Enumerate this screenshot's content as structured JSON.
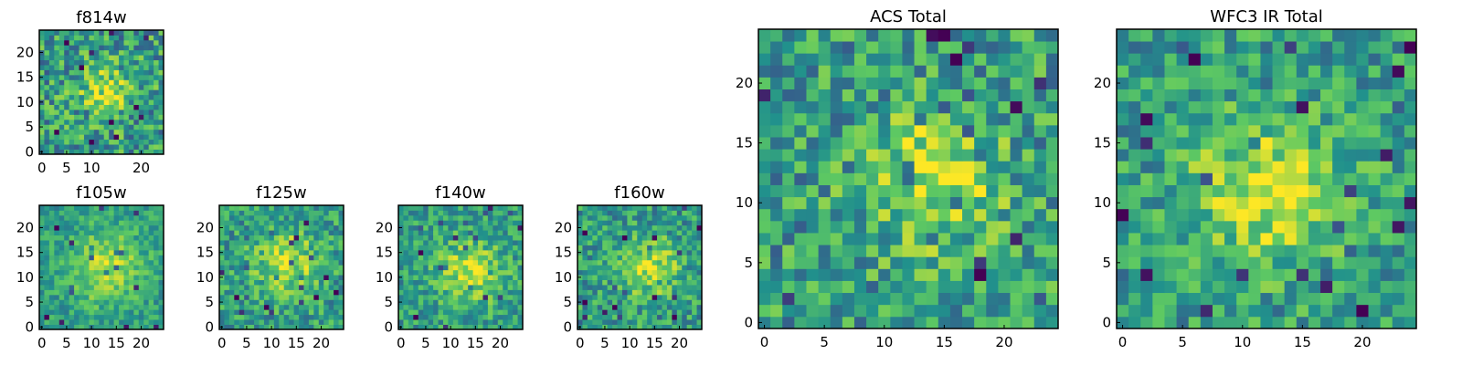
{
  "chart_data": [
    {
      "type": "heatmap",
      "id": "f814w",
      "title": "f814w",
      "size": 25,
      "xticks": [
        0,
        5,
        10,
        20
      ],
      "yticks": [
        0,
        5,
        10,
        15,
        20
      ],
      "xlim": [
        -0.5,
        24.5
      ],
      "ylim": [
        -0.5,
        24.5
      ],
      "peak": [
        13,
        12
      ],
      "spread": 3.5,
      "seed": 11,
      "noise": 0.28
    },
    {
      "type": "heatmap",
      "id": "f105w",
      "title": "f105w",
      "size": 25,
      "xticks": [
        0,
        5,
        10,
        15,
        20
      ],
      "yticks": [
        0,
        5,
        10,
        15,
        20
      ],
      "xlim": [
        -0.5,
        24.5
      ],
      "ylim": [
        -0.5,
        24.5
      ],
      "peak": [
        13,
        12
      ],
      "spread": 5,
      "seed": 21,
      "noise": 0.16
    },
    {
      "type": "heatmap",
      "id": "f125w",
      "title": "f125w",
      "size": 25,
      "xticks": [
        0,
        5,
        10,
        15,
        20
      ],
      "yticks": [
        0,
        5,
        10,
        15,
        20
      ],
      "xlim": [
        -0.5,
        24.5
      ],
      "ylim": [
        -0.5,
        24.5
      ],
      "peak": [
        13,
        13
      ],
      "spread": 4.5,
      "seed": 31,
      "noise": 0.22
    },
    {
      "type": "heatmap",
      "id": "f140w",
      "title": "f140w",
      "size": 25,
      "xticks": [
        0,
        5,
        10,
        15,
        20
      ],
      "yticks": [
        0,
        5,
        10,
        15,
        20
      ],
      "xlim": [
        -0.5,
        24.5
      ],
      "ylim": [
        -0.5,
        24.5
      ],
      "peak": [
        14,
        11
      ],
      "spread": 4.5,
      "seed": 41,
      "noise": 0.2
    },
    {
      "type": "heatmap",
      "id": "f160w",
      "title": "f160w",
      "size": 25,
      "xticks": [
        0,
        5,
        10,
        15,
        20
      ],
      "yticks": [
        0,
        5,
        10,
        15,
        20
      ],
      "xlim": [
        -0.5,
        24.5
      ],
      "ylim": [
        -0.5,
        24.5
      ],
      "peak": [
        14,
        12
      ],
      "spread": 4,
      "seed": 51,
      "noise": 0.22
    },
    {
      "type": "heatmap",
      "id": "acs-total",
      "title": "ACS Total",
      "size": 25,
      "xticks": [
        0,
        5,
        10,
        15,
        20
      ],
      "yticks": [
        0,
        5,
        10,
        15,
        20
      ],
      "xlim": [
        -0.5,
        24.5
      ],
      "ylim": [
        -0.5,
        24.5
      ],
      "peak": [
        14,
        12
      ],
      "spread": 4,
      "seed": 61,
      "noise": 0.26
    },
    {
      "type": "heatmap",
      "id": "wfc3-ir-total",
      "title": "WFC3 IR Total",
      "size": 25,
      "xticks": [
        0,
        5,
        10,
        15,
        20
      ],
      "yticks": [
        0,
        5,
        10,
        15,
        20
      ],
      "xlim": [
        -0.5,
        24.5
      ],
      "ylim": [
        -0.5,
        24.5
      ],
      "peak": [
        12,
        11
      ],
      "spread": 4.5,
      "seed": 71,
      "noise": 0.22
    }
  ],
  "colormap": [
    "#440154",
    "#3b528b",
    "#21918c",
    "#5ec962",
    "#fde725"
  ]
}
